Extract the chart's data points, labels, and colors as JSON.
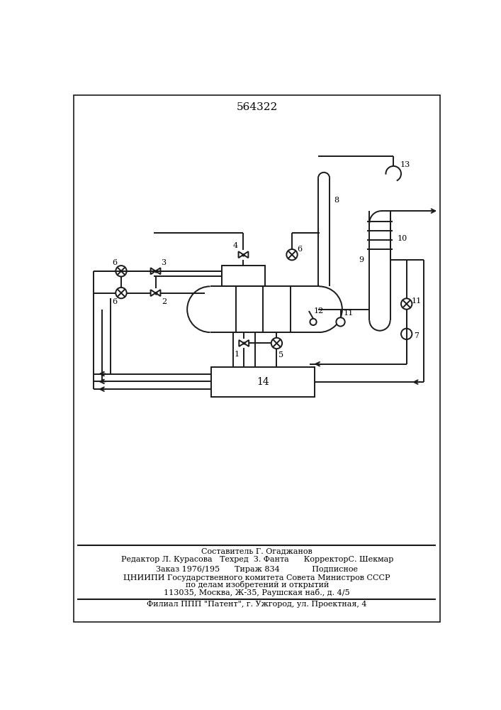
{
  "title": "564322",
  "bg_color": "#ffffff",
  "line_color": "#1a1a1a",
  "lw": 1.4,
  "footer_text": [
    [
      354,
      148,
      "Составитель Г. Огаджанов",
      8
    ],
    [
      354,
      133,
      "Редактор Л. Курасова   Техред  З. Фанта      КорректорС. Шекмар",
      8
    ],
    [
      354,
      114,
      "Заказ 1976/195      Тираж 834             Подписное",
      8
    ],
    [
      354,
      99,
      "ЦНИИПИ Государственного комитета Совета Министров СССР",
      8
    ],
    [
      354,
      86,
      "по делам изобретений и открытий",
      8
    ],
    [
      354,
      72,
      "113035, Москва, Ж-35, Раушская наб., д. 4/5",
      8
    ],
    [
      354,
      50,
      "Филиал ППП \"Патент\", г. Ужгород, ул. Проектная, 4",
      8
    ]
  ]
}
